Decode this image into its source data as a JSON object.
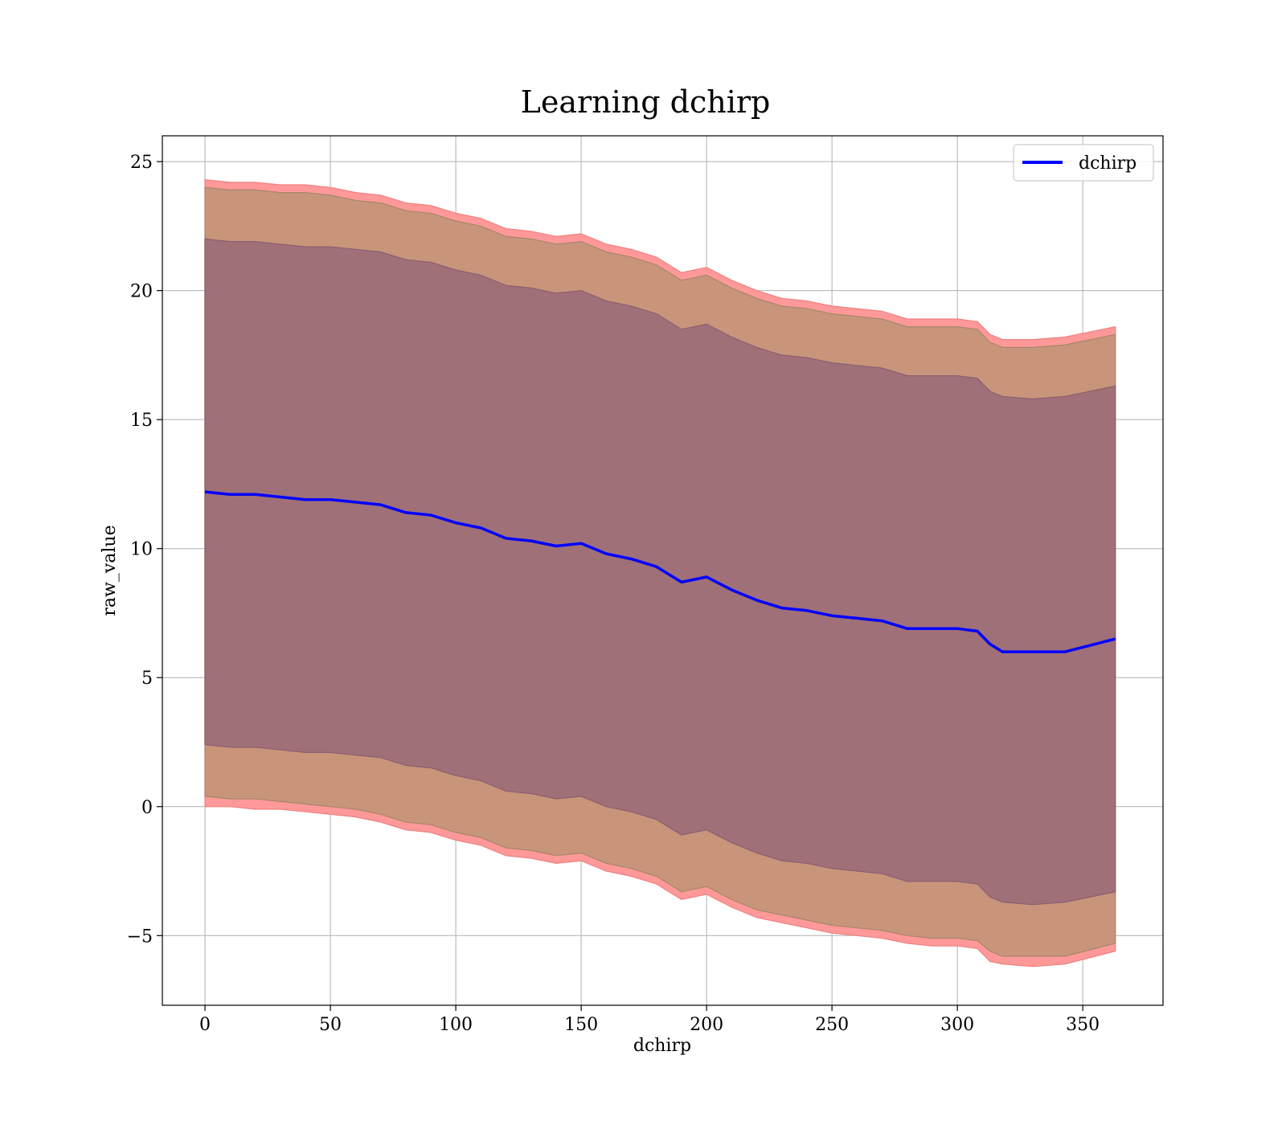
{
  "chart_data": {
    "type": "line",
    "title": "Learning dchirp",
    "xlabel": "dchirp",
    "ylabel": "raw_value",
    "xlim": [
      -17,
      382
    ],
    "ylim": [
      -7.7,
      26
    ],
    "x_ticks": [
      0,
      50,
      100,
      150,
      200,
      250,
      300,
      350
    ],
    "y_ticks": [
      -5,
      0,
      5,
      10,
      15,
      20,
      25
    ],
    "x_tick_labels": [
      "0",
      "50",
      "100",
      "150",
      "200",
      "250",
      "300",
      "350"
    ],
    "y_tick_labels": [
      "−5",
      "0",
      "5",
      "10",
      "15",
      "20",
      "25"
    ],
    "grid": true,
    "legend_position": "top-right",
    "colors": {
      "line": "#0000ff",
      "band_outer": "#ff9999",
      "band_middle": "#c8957a",
      "band_inner": "#a07079",
      "grid": "#b0b0b0"
    },
    "series": [
      {
        "name": "dchirp",
        "x": [
          0,
          10,
          20,
          30,
          40,
          50,
          60,
          70,
          80,
          90,
          100,
          110,
          120,
          130,
          140,
          150,
          160,
          170,
          180,
          190,
          200,
          210,
          220,
          230,
          240,
          250,
          260,
          270,
          280,
          290,
          300,
          308,
          313,
          318,
          330,
          343,
          363
        ],
        "y": [
          12.2,
          12.1,
          12.1,
          12.0,
          11.9,
          11.9,
          11.8,
          11.7,
          11.4,
          11.3,
          11.0,
          10.8,
          10.4,
          10.3,
          10.1,
          10.2,
          9.8,
          9.6,
          9.3,
          8.7,
          8.9,
          8.4,
          8.0,
          7.7,
          7.6,
          7.4,
          7.3,
          7.2,
          6.9,
          6.9,
          6.9,
          6.8,
          6.3,
          6.0,
          6.0,
          6.0,
          6.5
        ]
      }
    ],
    "bands": [
      {
        "role": "outer",
        "x": [
          0,
          10,
          20,
          30,
          40,
          50,
          60,
          70,
          80,
          90,
          100,
          110,
          120,
          130,
          140,
          150,
          160,
          170,
          180,
          190,
          200,
          210,
          220,
          230,
          240,
          250,
          260,
          270,
          280,
          290,
          300,
          308,
          313,
          318,
          330,
          343,
          363
        ],
        "upper": [
          24.3,
          24.2,
          24.2,
          24.1,
          24.1,
          24.0,
          23.8,
          23.7,
          23.4,
          23.3,
          23.0,
          22.8,
          22.4,
          22.3,
          22.1,
          22.2,
          21.8,
          21.6,
          21.3,
          20.7,
          20.9,
          20.4,
          20.0,
          19.7,
          19.6,
          19.4,
          19.3,
          19.2,
          18.9,
          18.9,
          18.9,
          18.8,
          18.3,
          18.1,
          18.1,
          18.2,
          18.6
        ],
        "lower": [
          0.0,
          0.0,
          -0.1,
          -0.1,
          -0.2,
          -0.3,
          -0.4,
          -0.6,
          -0.9,
          -1.0,
          -1.3,
          -1.5,
          -1.9,
          -2.0,
          -2.2,
          -2.1,
          -2.5,
          -2.7,
          -3.0,
          -3.6,
          -3.4,
          -3.9,
          -4.3,
          -4.5,
          -4.7,
          -4.9,
          -5.0,
          -5.1,
          -5.3,
          -5.4,
          -5.4,
          -5.5,
          -6.0,
          -6.1,
          -6.2,
          -6.1,
          -5.6
        ]
      },
      {
        "role": "middle",
        "x": [
          0,
          10,
          20,
          30,
          40,
          50,
          60,
          70,
          80,
          90,
          100,
          110,
          120,
          130,
          140,
          150,
          160,
          170,
          180,
          190,
          200,
          210,
          220,
          230,
          240,
          250,
          260,
          270,
          280,
          290,
          300,
          308,
          313,
          318,
          330,
          343,
          363
        ],
        "upper": [
          24.0,
          23.9,
          23.9,
          23.8,
          23.8,
          23.7,
          23.5,
          23.4,
          23.1,
          23.0,
          22.7,
          22.5,
          22.1,
          22.0,
          21.8,
          21.9,
          21.5,
          21.3,
          21.0,
          20.4,
          20.6,
          20.1,
          19.7,
          19.4,
          19.3,
          19.1,
          19.0,
          18.9,
          18.6,
          18.6,
          18.6,
          18.5,
          18.0,
          17.8,
          17.8,
          17.9,
          18.3
        ],
        "lower": [
          0.4,
          0.3,
          0.3,
          0.2,
          0.1,
          0.0,
          -0.1,
          -0.3,
          -0.6,
          -0.7,
          -1.0,
          -1.2,
          -1.6,
          -1.7,
          -1.9,
          -1.8,
          -2.2,
          -2.4,
          -2.7,
          -3.3,
          -3.1,
          -3.6,
          -4.0,
          -4.2,
          -4.4,
          -4.6,
          -4.7,
          -4.8,
          -5.0,
          -5.1,
          -5.1,
          -5.2,
          -5.6,
          -5.8,
          -5.8,
          -5.8,
          -5.3
        ]
      },
      {
        "role": "inner",
        "x": [
          0,
          10,
          20,
          30,
          40,
          50,
          60,
          70,
          80,
          90,
          100,
          110,
          120,
          130,
          140,
          150,
          160,
          170,
          180,
          190,
          200,
          210,
          220,
          230,
          240,
          250,
          260,
          270,
          280,
          290,
          300,
          308,
          313,
          318,
          330,
          343,
          363
        ],
        "upper": [
          22.0,
          21.9,
          21.9,
          21.8,
          21.7,
          21.7,
          21.6,
          21.5,
          21.2,
          21.1,
          20.8,
          20.6,
          20.2,
          20.1,
          19.9,
          20.0,
          19.6,
          19.4,
          19.1,
          18.5,
          18.7,
          18.2,
          17.8,
          17.5,
          17.4,
          17.2,
          17.1,
          17.0,
          16.7,
          16.7,
          16.7,
          16.6,
          16.1,
          15.9,
          15.8,
          15.9,
          16.3
        ],
        "lower": [
          2.4,
          2.3,
          2.3,
          2.2,
          2.1,
          2.1,
          2.0,
          1.9,
          1.6,
          1.5,
          1.2,
          1.0,
          0.6,
          0.5,
          0.3,
          0.4,
          0.0,
          -0.2,
          -0.5,
          -1.1,
          -0.9,
          -1.4,
          -1.8,
          -2.1,
          -2.2,
          -2.4,
          -2.5,
          -2.6,
          -2.9,
          -2.9,
          -2.9,
          -3.0,
          -3.5,
          -3.7,
          -3.8,
          -3.7,
          -3.3
        ]
      }
    ]
  }
}
